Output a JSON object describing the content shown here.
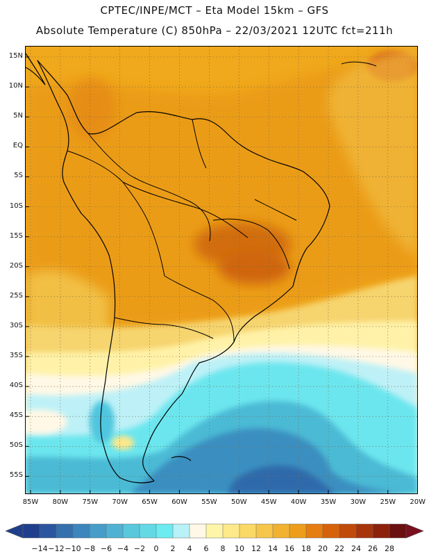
{
  "header": {
    "line1": "CPTEC/INPE/MCT –  Eta Model 15km – GFS",
    "line2": "Absolute Temperature (C) 850hPa – 22/03/2021 12UTC fct=211h"
  },
  "axes": {
    "lat_labels": [
      "15N",
      "10N",
      "5N",
      "EQ",
      "5S",
      "10S",
      "15S",
      "20S",
      "25S",
      "30S",
      "35S",
      "40S",
      "45S",
      "50S",
      "55S"
    ],
    "lon_labels": [
      "85W",
      "80W",
      "75W",
      "70W",
      "65W",
      "60W",
      "55W",
      "50W",
      "45W",
      "40W",
      "35W",
      "30W",
      "25W",
      "20W"
    ]
  },
  "colorbar": {
    "labels": [
      "-14",
      "-12",
      "-10",
      "-8",
      "-6",
      "-4",
      "-2",
      "0",
      "2",
      "4",
      "6",
      "8",
      "10",
      "12",
      "14",
      "16",
      "18",
      "20",
      "22",
      "24",
      "26",
      "28"
    ],
    "colors": [
      "#1f3f8c",
      "#2b569f",
      "#3470ae",
      "#3c86bd",
      "#459dc8",
      "#4fb2d2",
      "#59c7dc",
      "#63d9e6",
      "#6cebf0",
      "#b8f1f7",
      "#fff8e6",
      "#fff5a8",
      "#fde88a",
      "#fbd967",
      "#f6c64a",
      "#f1b232",
      "#ec9e1b",
      "#e57d10",
      "#d6620c",
      "#c04a0a",
      "#a8340a",
      "#8c210c",
      "#6b1010"
    ]
  },
  "map": {
    "region": "South America",
    "lat_range": [
      -58,
      17
    ],
    "lon_range": [
      -86,
      -19
    ]
  }
}
